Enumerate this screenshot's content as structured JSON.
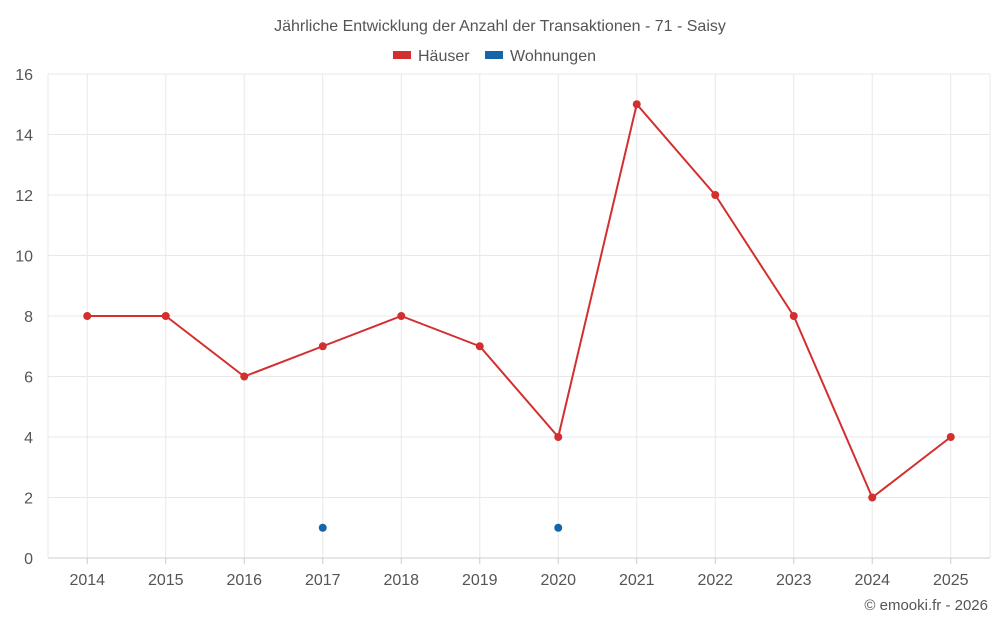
{
  "chart_data": {
    "type": "line",
    "title": "Jährliche Entwicklung der Anzahl der Transaktionen - 71 - Saisy",
    "xlabel": "",
    "ylabel": "",
    "categories": [
      "2014",
      "2015",
      "2016",
      "2017",
      "2018",
      "2019",
      "2020",
      "2021",
      "2022",
      "2023",
      "2024",
      "2025"
    ],
    "ylim": [
      0,
      16
    ],
    "yticks": [
      "0",
      "2",
      "4",
      "6",
      "8",
      "10",
      "12",
      "14",
      "16"
    ],
    "grid": true,
    "legend_position": "top-center",
    "series": [
      {
        "name": "Häuser",
        "color": "#d32f2f",
        "values": [
          8,
          8,
          6,
          7,
          8,
          7,
          4,
          15,
          12,
          8,
          2,
          4
        ]
      },
      {
        "name": "Wohnungen",
        "color": "#1565a8",
        "values": [
          null,
          null,
          null,
          1,
          null,
          null,
          1,
          null,
          null,
          null,
          null,
          null
        ]
      }
    ]
  },
  "footer": {
    "credit": "© emooki.fr - 2026"
  }
}
